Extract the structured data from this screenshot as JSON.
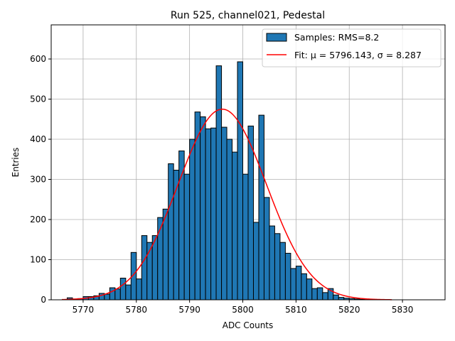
{
  "chart_data": {
    "type": "bar",
    "title": "Run 525, channel021, Pedestal",
    "xlabel": "ADC Counts",
    "ylabel": "Entries",
    "xlim": [
      5764,
      5838
    ],
    "ylim": [
      0,
      685
    ],
    "xticks": [
      5770,
      5780,
      5790,
      5800,
      5810,
      5820,
      5830
    ],
    "yticks": [
      0,
      100,
      200,
      300,
      400,
      500,
      600
    ],
    "grid": true,
    "legend_position": "top-right",
    "bin_width": 1,
    "histogram": {
      "name": "Samples: RMS=8.2",
      "color": "#1f77b4",
      "edgecolor": "#000000",
      "bin_starts": [
        5767,
        5768,
        5769,
        5770,
        5771,
        5772,
        5773,
        5774,
        5775,
        5776,
        5777,
        5778,
        5779,
        5780,
        5781,
        5782,
        5783,
        5784,
        5785,
        5786,
        5787,
        5788,
        5789,
        5790,
        5791,
        5792,
        5793,
        5794,
        5795,
        5796,
        5797,
        5798,
        5799,
        5800,
        5801,
        5802,
        5803,
        5804,
        5805,
        5806,
        5807,
        5808,
        5809,
        5810,
        5811,
        5812,
        5813,
        5814,
        5815,
        5816,
        5817,
        5818,
        5819,
        5820,
        5821,
        5822
      ],
      "values": [
        5,
        2,
        3,
        8,
        8,
        10,
        16,
        14,
        30,
        27,
        54,
        37,
        118,
        52,
        160,
        143,
        160,
        205,
        226,
        339,
        323,
        371,
        313,
        400,
        468,
        456,
        426,
        428,
        583,
        430,
        400,
        368,
        593,
        313,
        433,
        193,
        460,
        255,
        184,
        165,
        143,
        116,
        78,
        84,
        65,
        52,
        28,
        30,
        18,
        28,
        12,
        6,
        4,
        3,
        2,
        1
      ]
    },
    "fit": {
      "name": "Fit: μ = 5796.143, σ = 8.287",
      "mu": 5796.143,
      "sigma": 8.287,
      "amplitude": 475,
      "x_range": [
        5766,
        5828
      ],
      "color": "#ff0000"
    }
  }
}
